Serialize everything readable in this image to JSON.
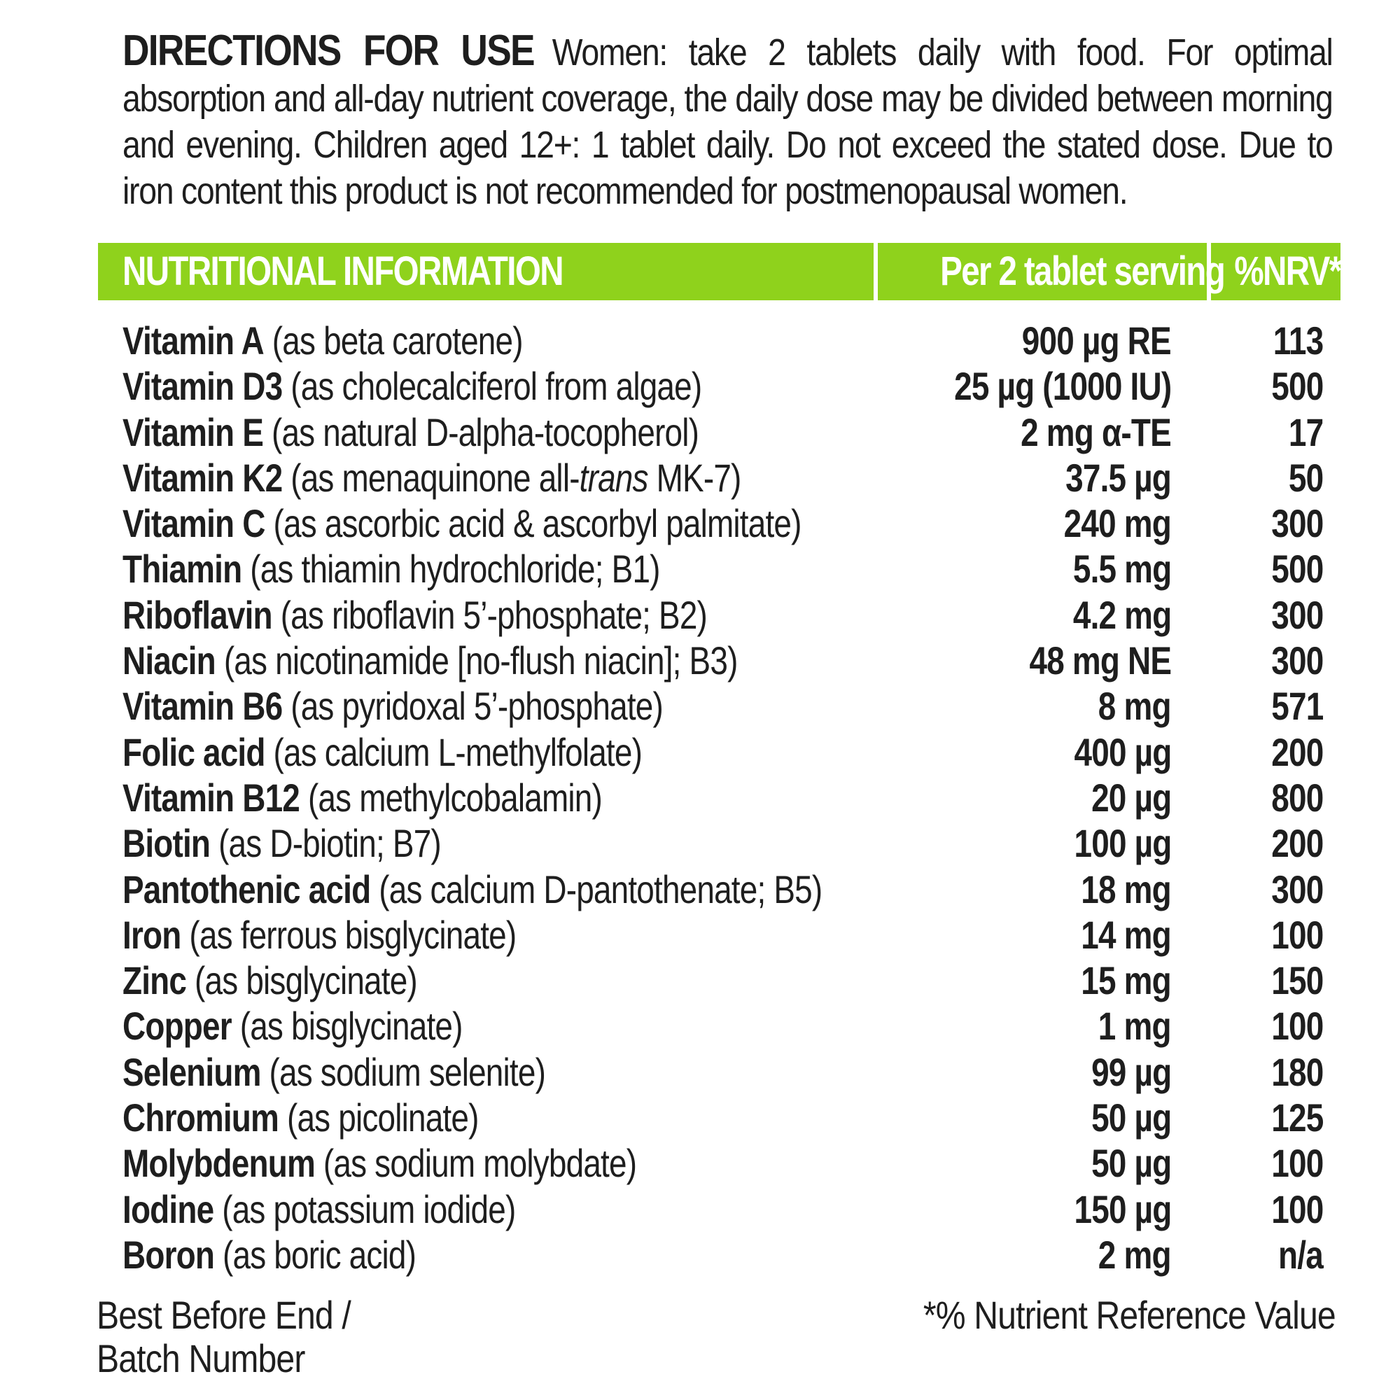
{
  "directions": {
    "heading": "DIRECTIONS FOR USE",
    "text": "Women: take 2 tablets daily with food. For optimal absorption and all-day nutrient coverage, the daily dose may be divided between morning and evening. Children aged 12+: 1 tablet daily. Do not exceed the stated dose. Due to iron content this product is not recommended for postmenopausal women."
  },
  "table": {
    "header": {
      "name": "NUTRITIONAL INFORMATION",
      "amount": "Per 2 tablet serving",
      "nrv": "%NRV*"
    },
    "rows": [
      {
        "name": "Vitamin A",
        "source": " (as beta carotene)",
        "amount": "900 µg RE",
        "nrv": "113"
      },
      {
        "name": "Vitamin D3",
        "source": " (as cholecalciferol from algae)",
        "amount": "25 µg (1000 IU)",
        "nrv": "500"
      },
      {
        "name": "Vitamin E",
        "source": " (as natural D-alpha-tocopherol)",
        "amount": "2 mg α-TE",
        "nrv": "17"
      },
      {
        "name": "Vitamin K2",
        "source": " (as menaquinone all-",
        "source_italic": "trans",
        "source_end": " MK-7)",
        "amount": "37.5 µg",
        "nrv": "50"
      },
      {
        "name": "Vitamin C",
        "source": " (as ascorbic acid & ascorbyl palmitate)",
        "amount": "240 mg",
        "nrv": "300"
      },
      {
        "name": "Thiamin",
        "source": " (as thiamin hydrochloride; B1)",
        "amount": "5.5 mg",
        "nrv": "500"
      },
      {
        "name": "Riboflavin",
        "source": " (as riboflavin 5’-phosphate; B2)",
        "amount": "4.2 mg",
        "nrv": "300"
      },
      {
        "name": "Niacin",
        "source": " (as nicotinamide [no-flush niacin]; B3)",
        "amount": "48 mg NE",
        "nrv": "300"
      },
      {
        "name": "Vitamin B6",
        "source": " (as pyridoxal 5’-phosphate)",
        "amount": "8 mg",
        "nrv": "571"
      },
      {
        "name": "Folic acid",
        "source": " (as calcium L-methylfolate)",
        "amount": "400 µg",
        "nrv": "200"
      },
      {
        "name": "Vitamin B12",
        "source": " (as methylcobalamin)",
        "amount": "20 µg",
        "nrv": "800"
      },
      {
        "name": "Biotin",
        "source": " (as D-biotin; B7)",
        "amount": "100 µg",
        "nrv": "200"
      },
      {
        "name": "Pantothenic acid",
        "source": " (as calcium D-pantothenate; B5)",
        "amount": "18 mg",
        "nrv": "300"
      },
      {
        "name": "Iron",
        "source": " (as ferrous bisglycinate)",
        "amount": "14 mg",
        "nrv": "100"
      },
      {
        "name": "Zinc",
        "source": " (as bisglycinate)",
        "amount": "15 mg",
        "nrv": "150"
      },
      {
        "name": "Copper",
        "source": " (as bisglycinate)",
        "amount": "1 mg",
        "nrv": "100"
      },
      {
        "name": "Selenium",
        "source": " (as sodium selenite)",
        "amount": "99 µg",
        "nrv": "180"
      },
      {
        "name": "Chromium",
        "source": " (as picolinate)",
        "amount": "50 µg",
        "nrv": "125"
      },
      {
        "name": "Molybdenum",
        "source": " (as sodium molybdate)",
        "amount": "50 µg",
        "nrv": "100"
      },
      {
        "name": "Iodine",
        "source": " (as potassium iodide)",
        "amount": "150 µg",
        "nrv": "100"
      },
      {
        "name": "Boron",
        "source": " (as boric acid)",
        "amount": "2 mg",
        "nrv": "n/a"
      }
    ]
  },
  "footer": {
    "best_before_line1": "Best Before End /",
    "best_before_line2": "Batch Number",
    "nrv_note": "*% Nutrient Reference Value"
  },
  "colors": {
    "header_green": "#8fd21c",
    "text": "#1e1e1e"
  }
}
